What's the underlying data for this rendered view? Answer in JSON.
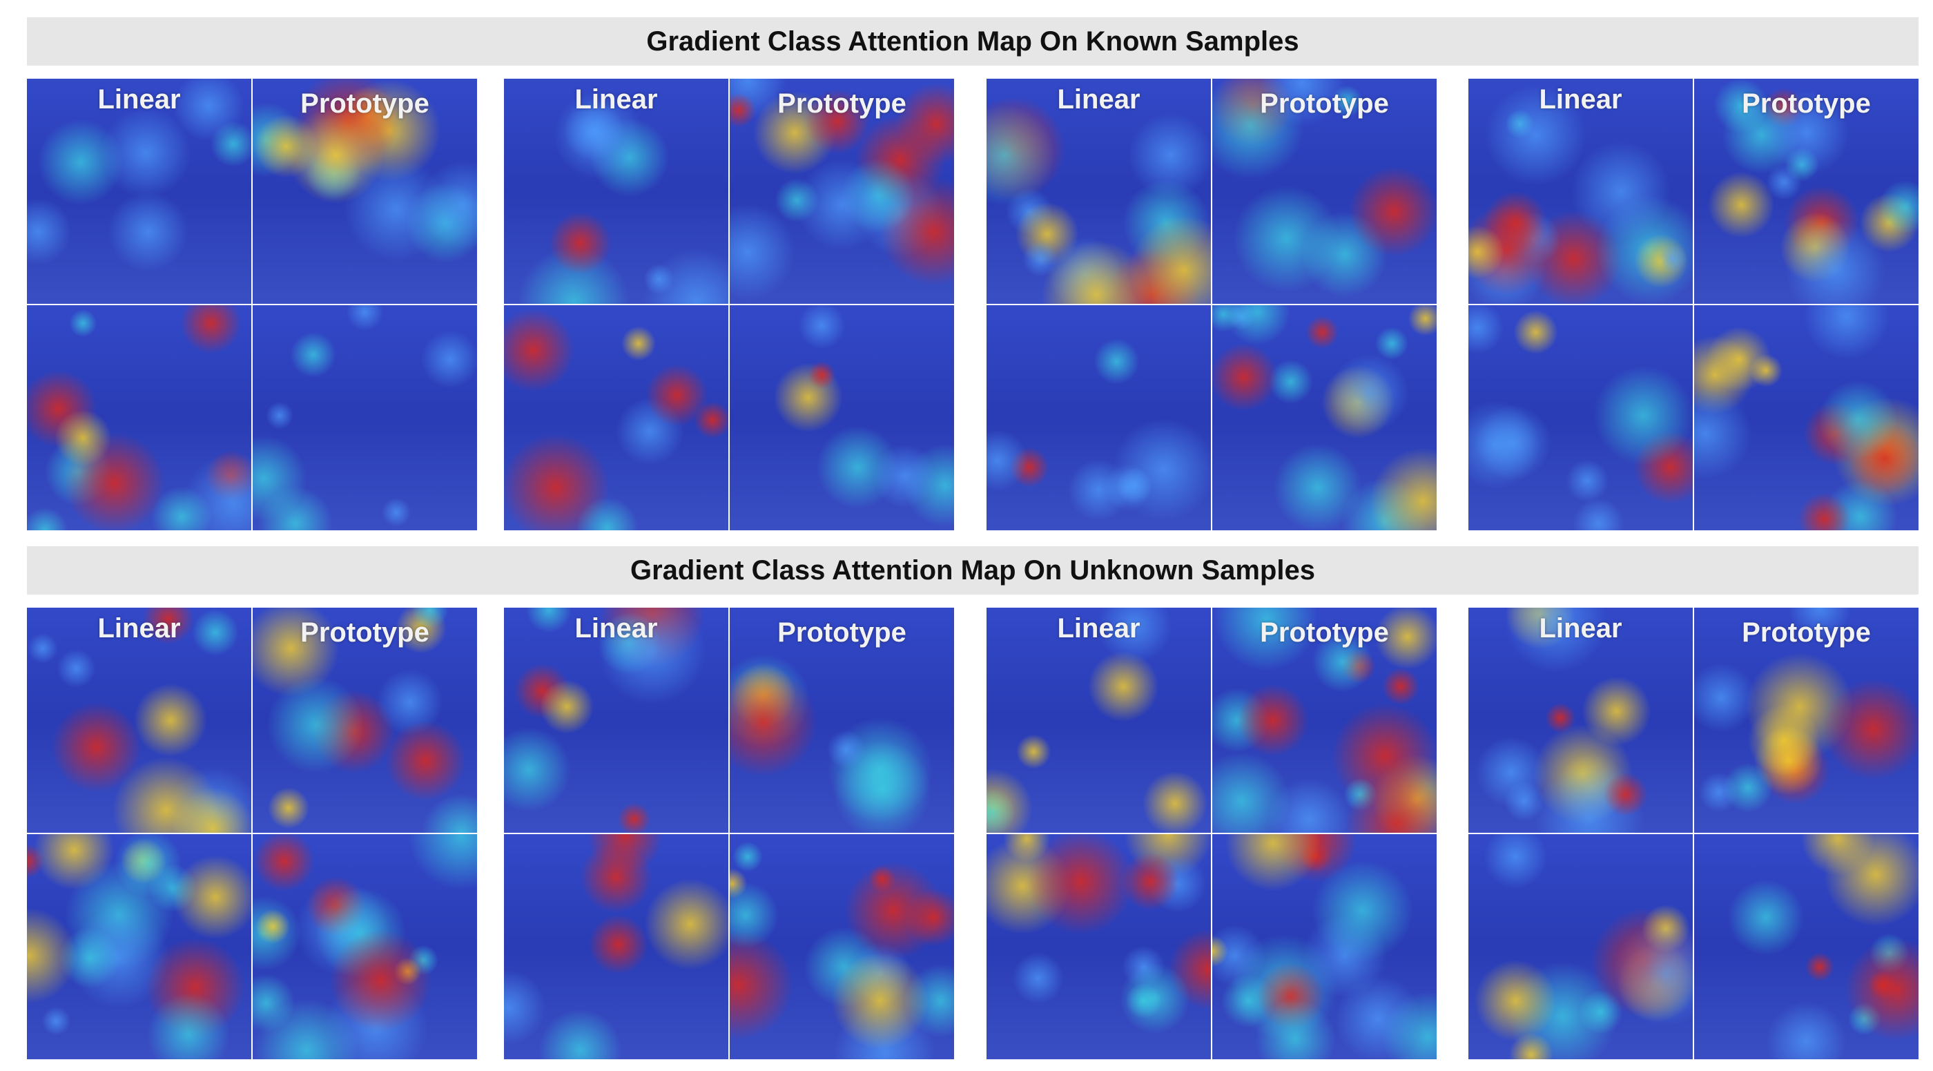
{
  "sections": [
    {
      "title": "Gradient Class Attention Map On Known Samples",
      "groups": [
        {
          "left": "Linear",
          "right": "Prototype"
        },
        {
          "left": "Linear",
          "right": "Prototype"
        },
        {
          "left": "Linear",
          "right": "Prototype"
        },
        {
          "left": "Linear",
          "right": "Prototype"
        }
      ]
    },
    {
      "title": "Gradient Class Attention Map On Unknown Samples",
      "groups": [
        {
          "left": "Linear",
          "right": "Prototype"
        },
        {
          "left": "Linear",
          "right": "Prototype"
        },
        {
          "left": "Linear",
          "right": "Prototype"
        },
        {
          "left": "Linear",
          "right": "Prototype"
        }
      ]
    }
  ]
}
